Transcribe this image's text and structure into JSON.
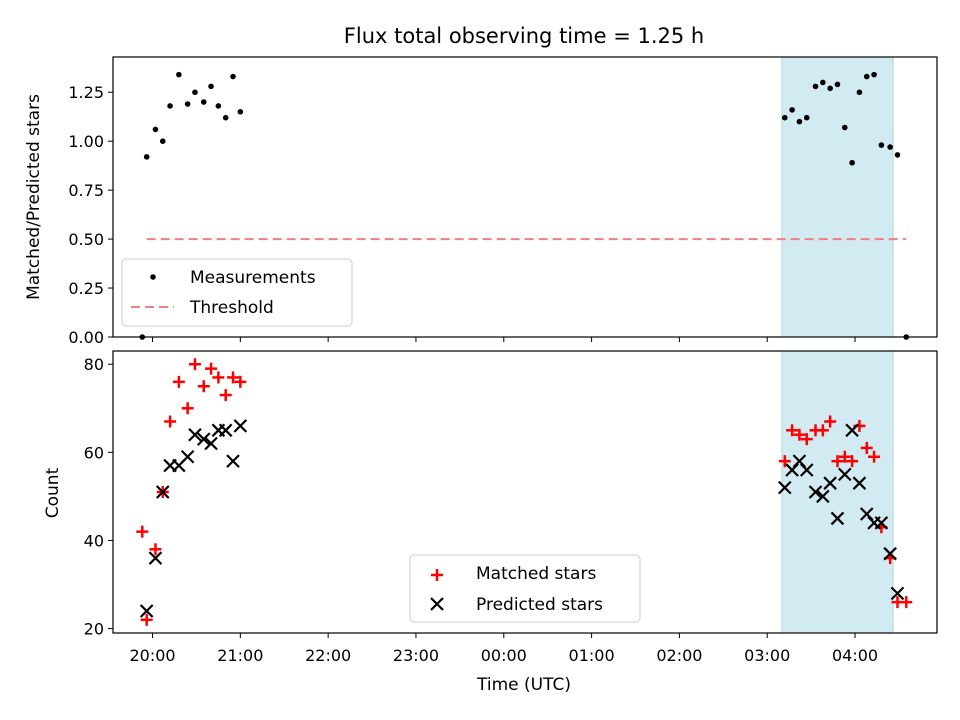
{
  "chart_data": [
    {
      "type": "scatter",
      "title": "Flux total observing time = 1.25 h",
      "xlabel": "",
      "ylabel": "Matched/Predicted stars",
      "xlim": [
        "19:33",
        "04:56"
      ],
      "ylim": [
        0,
        1.43
      ],
      "yticks": [
        0.0,
        0.25,
        0.5,
        0.75,
        1.0,
        1.25
      ],
      "ytick_labels": [
        "0.00",
        "0.25",
        "0.50",
        "0.75",
        "1.00",
        "1.25"
      ],
      "shaded_span": [
        "03:10",
        "04:26"
      ],
      "legend": {
        "position": "bottom-left",
        "entries": [
          "Measurements",
          "Threshold"
        ]
      },
      "series": [
        {
          "name": "Measurements",
          "marker": "dot",
          "color": "#000000",
          "points": [
            [
              "19:53",
              0.0
            ],
            [
              "19:56",
              0.92
            ],
            [
              "20:02",
              1.06
            ],
            [
              "20:07",
              1.0
            ],
            [
              "20:12",
              1.18
            ],
            [
              "20:18",
              1.34
            ],
            [
              "20:24",
              1.19
            ],
            [
              "20:29",
              1.25
            ],
            [
              "20:35",
              1.2
            ],
            [
              "20:40",
              1.28
            ],
            [
              "20:45",
              1.18
            ],
            [
              "20:50",
              1.12
            ],
            [
              "20:55",
              1.33
            ],
            [
              "21:00",
              1.15
            ],
            [
              "03:12",
              1.12
            ],
            [
              "03:17",
              1.16
            ],
            [
              "03:22",
              1.1
            ],
            [
              "03:27",
              1.12
            ],
            [
              "03:33",
              1.28
            ],
            [
              "03:38",
              1.3
            ],
            [
              "03:43",
              1.27
            ],
            [
              "03:48",
              1.29
            ],
            [
              "03:53",
              1.07
            ],
            [
              "03:58",
              0.89
            ],
            [
              "04:03",
              1.25
            ],
            [
              "04:08",
              1.33
            ],
            [
              "04:13",
              1.34
            ],
            [
              "04:18",
              0.98
            ],
            [
              "04:24",
              0.97
            ],
            [
              "04:29",
              0.93
            ],
            [
              "04:35",
              0.0
            ]
          ]
        },
        {
          "name": "Threshold",
          "style": "dashed",
          "color": "#f08080",
          "y": 0.5,
          "x_range": [
            "19:56",
            "04:35"
          ]
        }
      ]
    },
    {
      "type": "scatter",
      "title": "",
      "xlabel": "Time (UTC)",
      "ylabel": "Count",
      "xlim": [
        "19:33",
        "04:56"
      ],
      "ylim": [
        19,
        83
      ],
      "yticks": [
        20,
        40,
        60,
        80
      ],
      "ytick_labels": [
        "20",
        "40",
        "60",
        "80"
      ],
      "xticks": [
        "20:00",
        "21:00",
        "22:00",
        "23:00",
        "00:00",
        "01:00",
        "02:00",
        "03:00",
        "04:00"
      ],
      "shaded_span": [
        "03:10",
        "04:26"
      ],
      "legend": {
        "position": "bottom-center",
        "entries": [
          "Matched stars",
          "Predicted stars"
        ]
      },
      "series": [
        {
          "name": "Matched stars",
          "marker": "plus",
          "color": "#ff0000",
          "points": [
            [
              "19:53",
              42
            ],
            [
              "19:56",
              22
            ],
            [
              "20:02",
              38
            ],
            [
              "20:07",
              51
            ],
            [
              "20:12",
              67
            ],
            [
              "20:18",
              76
            ],
            [
              "20:24",
              70
            ],
            [
              "20:29",
              80
            ],
            [
              "20:35",
              75
            ],
            [
              "20:40",
              79
            ],
            [
              "20:45",
              77
            ],
            [
              "20:50",
              73
            ],
            [
              "20:55",
              77
            ],
            [
              "21:00",
              76
            ],
            [
              "03:12",
              58
            ],
            [
              "03:17",
              65
            ],
            [
              "03:22",
              64
            ],
            [
              "03:27",
              63
            ],
            [
              "03:33",
              65
            ],
            [
              "03:38",
              65
            ],
            [
              "03:43",
              67
            ],
            [
              "03:48",
              58
            ],
            [
              "03:53",
              59
            ],
            [
              "03:58",
              58
            ],
            [
              "04:03",
              66
            ],
            [
              "04:08",
              61
            ],
            [
              "04:13",
              59
            ],
            [
              "04:18",
              43
            ],
            [
              "04:24",
              36
            ],
            [
              "04:29",
              26
            ],
            [
              "04:35",
              26
            ]
          ]
        },
        {
          "name": "Predicted stars",
          "marker": "x",
          "color": "#000000",
          "points": [
            [
              "19:56",
              24
            ],
            [
              "20:02",
              36
            ],
            [
              "20:07",
              51
            ],
            [
              "20:12",
              57
            ],
            [
              "20:18",
              57
            ],
            [
              "20:24",
              59
            ],
            [
              "20:29",
              64
            ],
            [
              "20:35",
              63
            ],
            [
              "20:40",
              62
            ],
            [
              "20:45",
              65
            ],
            [
              "20:50",
              65
            ],
            [
              "20:55",
              58
            ],
            [
              "21:00",
              66
            ],
            [
              "03:12",
              52
            ],
            [
              "03:17",
              56
            ],
            [
              "03:22",
              58
            ],
            [
              "03:27",
              56
            ],
            [
              "03:33",
              51
            ],
            [
              "03:38",
              50
            ],
            [
              "03:43",
              53
            ],
            [
              "03:48",
              45
            ],
            [
              "03:53",
              55
            ],
            [
              "03:58",
              65
            ],
            [
              "04:03",
              53
            ],
            [
              "04:08",
              46
            ],
            [
              "04:13",
              44
            ],
            [
              "04:18",
              44
            ],
            [
              "04:24",
              37
            ],
            [
              "04:29",
              28
            ]
          ]
        }
      ]
    }
  ],
  "colors": {
    "span_fill": "#add8e6",
    "threshold": "#f08080",
    "matched": "#ff0000",
    "predicted": "#000000"
  }
}
